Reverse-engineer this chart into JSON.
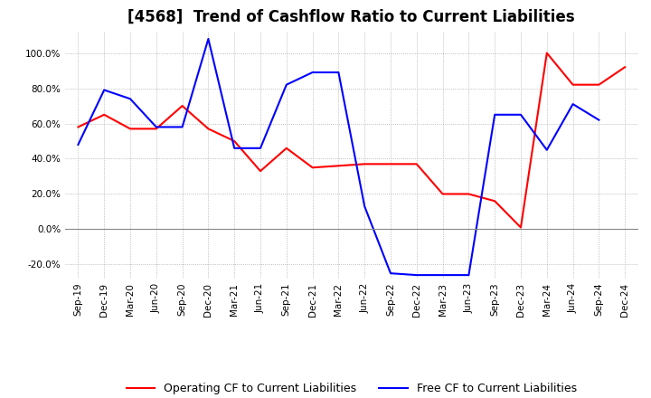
{
  "title": "[4568]  Trend of Cashflow Ratio to Current Liabilities",
  "x_labels": [
    "Sep-19",
    "Dec-19",
    "Mar-20",
    "Jun-20",
    "Sep-20",
    "Dec-20",
    "Mar-21",
    "Jun-21",
    "Sep-21",
    "Dec-21",
    "Mar-22",
    "Jun-22",
    "Sep-22",
    "Dec-22",
    "Mar-23",
    "Jun-23",
    "Sep-23",
    "Dec-23",
    "Mar-24",
    "Jun-24",
    "Sep-24",
    "Dec-24"
  ],
  "operating_cf": [
    0.58,
    0.65,
    0.57,
    0.57,
    0.7,
    0.57,
    0.5,
    0.33,
    0.46,
    0.35,
    0.36,
    0.37,
    0.37,
    0.37,
    0.2,
    0.2,
    0.16,
    0.01,
    1.0,
    0.82,
    0.82,
    0.92
  ],
  "free_cf": [
    0.48,
    0.79,
    0.74,
    0.58,
    0.58,
    1.08,
    0.46,
    0.46,
    0.82,
    0.89,
    0.89,
    0.13,
    -0.25,
    -0.26,
    -0.26,
    -0.26,
    0.65,
    0.65,
    0.45,
    0.71,
    0.62,
    null
  ],
  "ylim": [
    -0.28,
    1.12
  ],
  "yticks": [
    -0.2,
    0.0,
    0.2,
    0.4,
    0.6,
    0.8,
    1.0
  ],
  "operating_color": "#FF0000",
  "free_color": "#0000FF",
  "grid_color": "#AAAAAA",
  "zero_line_color": "#888888",
  "background_color": "#FFFFFF",
  "title_fontsize": 12,
  "tick_fontsize": 7.5,
  "legend_labels": [
    "Operating CF to Current Liabilities",
    "Free CF to Current Liabilities"
  ]
}
